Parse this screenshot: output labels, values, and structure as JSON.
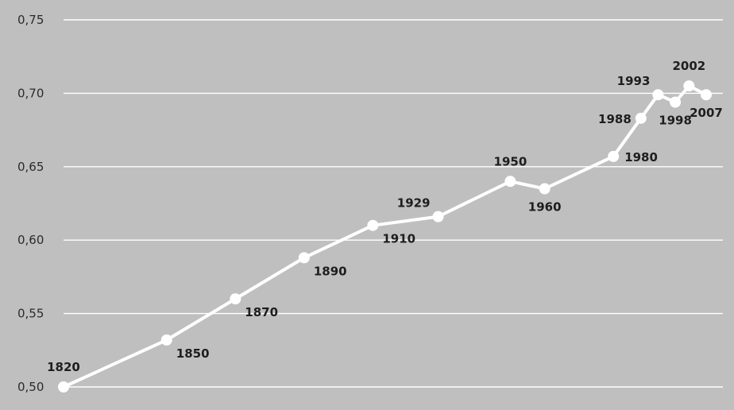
{
  "chart_data": {
    "type": "line",
    "title": "",
    "xlabel": "",
    "ylabel": "",
    "ylim": [
      0.5,
      0.75
    ],
    "yticks": [
      "0,50",
      "0,55",
      "0,60",
      "0,65",
      "0,70",
      "0,75"
    ],
    "ytick_values": [
      0.5,
      0.55,
      0.6,
      0.65,
      0.7,
      0.75
    ],
    "grid": true,
    "legend": "none",
    "colors": {
      "background": "#bfbfbf",
      "line": "#ffffff",
      "grid": "#ffffff",
      "text": "#1e1e1e"
    },
    "series": [
      {
        "points": [
          {
            "x": 1820,
            "y": 0.5,
            "label": "1820",
            "label_pos": "above"
          },
          {
            "x": 1850,
            "y": 0.532,
            "label": "1850",
            "label_pos": "below-right"
          },
          {
            "x": 1870,
            "y": 0.56,
            "label": "1870",
            "label_pos": "below-right"
          },
          {
            "x": 1890,
            "y": 0.588,
            "label": "1890",
            "label_pos": "below-right"
          },
          {
            "x": 1910,
            "y": 0.61,
            "label": "1910",
            "label_pos": "below-right"
          },
          {
            "x": 1929,
            "y": 0.616,
            "label": "1929",
            "label_pos": "above-left"
          },
          {
            "x": 1950,
            "y": 0.64,
            "label": "1950",
            "label_pos": "above"
          },
          {
            "x": 1960,
            "y": 0.635,
            "label": "1960",
            "label_pos": "below"
          },
          {
            "x": 1980,
            "y": 0.657,
            "label": "1980",
            "label_pos": "right"
          },
          {
            "x": 1988,
            "y": 0.683,
            "label": "1988",
            "label_pos": "left"
          },
          {
            "x": 1993,
            "y": 0.699,
            "label": "1993",
            "label_pos": "above-left"
          },
          {
            "x": 1998,
            "y": 0.694,
            "label": "1998",
            "label_pos": "below"
          },
          {
            "x": 2002,
            "y": 0.705,
            "label": "2002",
            "label_pos": "above"
          },
          {
            "x": 2007,
            "y": 0.699,
            "label": "2007",
            "label_pos": "below"
          }
        ]
      }
    ]
  }
}
